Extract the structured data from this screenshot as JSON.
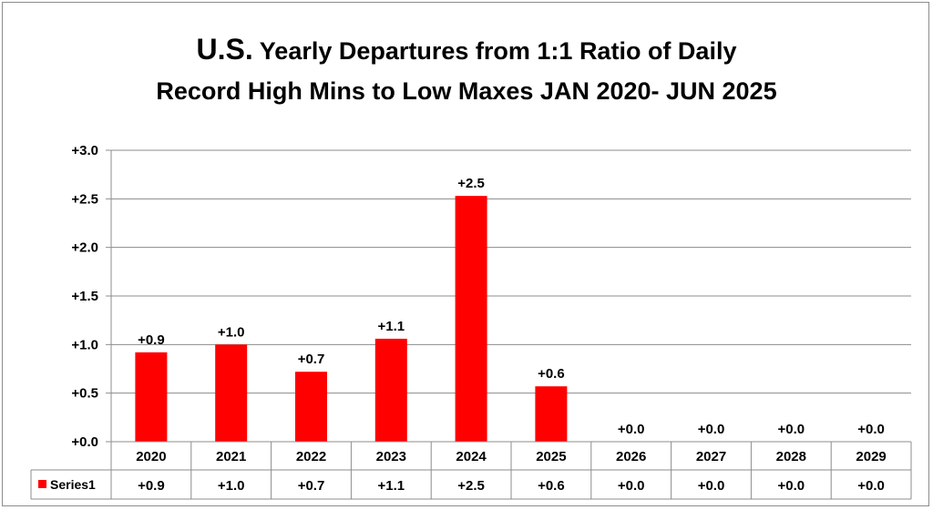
{
  "chart_data": {
    "type": "bar",
    "title_prefix": "U.S.",
    "title_line1": " Yearly Departures from 1:1 Ratio of Daily",
    "title_line2": "Record High Mins to Low Maxes JAN 2020- JUN 2025",
    "categories": [
      "2020",
      "2021",
      "2022",
      "2023",
      "2024",
      "2025",
      "2026",
      "2027",
      "2028",
      "2029"
    ],
    "series": [
      {
        "name": "Series1",
        "color": "#ff0000",
        "values": [
          0.92,
          1.0,
          0.72,
          1.06,
          2.53,
          0.57,
          0,
          0,
          0,
          0
        ],
        "labels": [
          "+0.9",
          "+1.0",
          "+0.7",
          "+1.1",
          "+2.5",
          "+0.6",
          "+0.0",
          "+0.0",
          "+0.0",
          "+0.0"
        ]
      }
    ],
    "ylim": [
      0,
      3.0
    ],
    "yticks": [
      0,
      0.5,
      1.0,
      1.5,
      2.0,
      2.5,
      3.0
    ],
    "ytick_labels": [
      "+0.0",
      "+0.5",
      "+1.0",
      "+1.5",
      "+2.0",
      "+2.5",
      "+3.0"
    ],
    "grid": true,
    "legend_placement": "data-table"
  }
}
